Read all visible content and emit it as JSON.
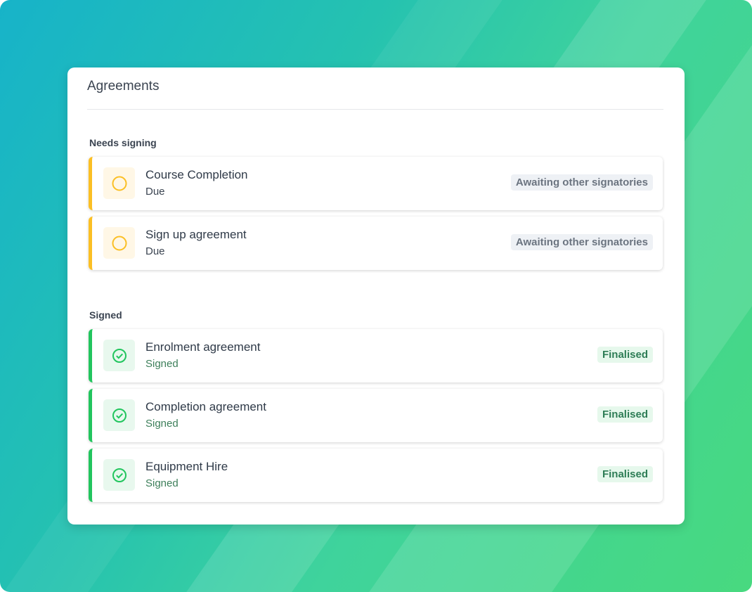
{
  "card": {
    "title": "Agreements"
  },
  "sections": [
    {
      "heading": "Needs signing",
      "items": [
        {
          "name": "Course Completion",
          "status": "Due",
          "badge": "Awaiting other signatories",
          "icon": "circle-outline-icon"
        },
        {
          "name": "Sign up agreement",
          "status": "Due",
          "badge": "Awaiting other signatories",
          "icon": "circle-outline-icon"
        }
      ]
    },
    {
      "heading": "Signed",
      "items": [
        {
          "name": "Enrolment agreement",
          "status": "Signed",
          "badge": "Finalised",
          "icon": "check-circle-icon"
        },
        {
          "name": "Completion agreement",
          "status": "Signed",
          "badge": "Finalised",
          "icon": "check-circle-icon"
        },
        {
          "name": "Equipment Hire",
          "status": "Signed",
          "badge": "Finalised",
          "icon": "check-circle-icon"
        }
      ]
    }
  ],
  "colors": {
    "pending": "#fbbf24",
    "signed": "#22c55e"
  }
}
